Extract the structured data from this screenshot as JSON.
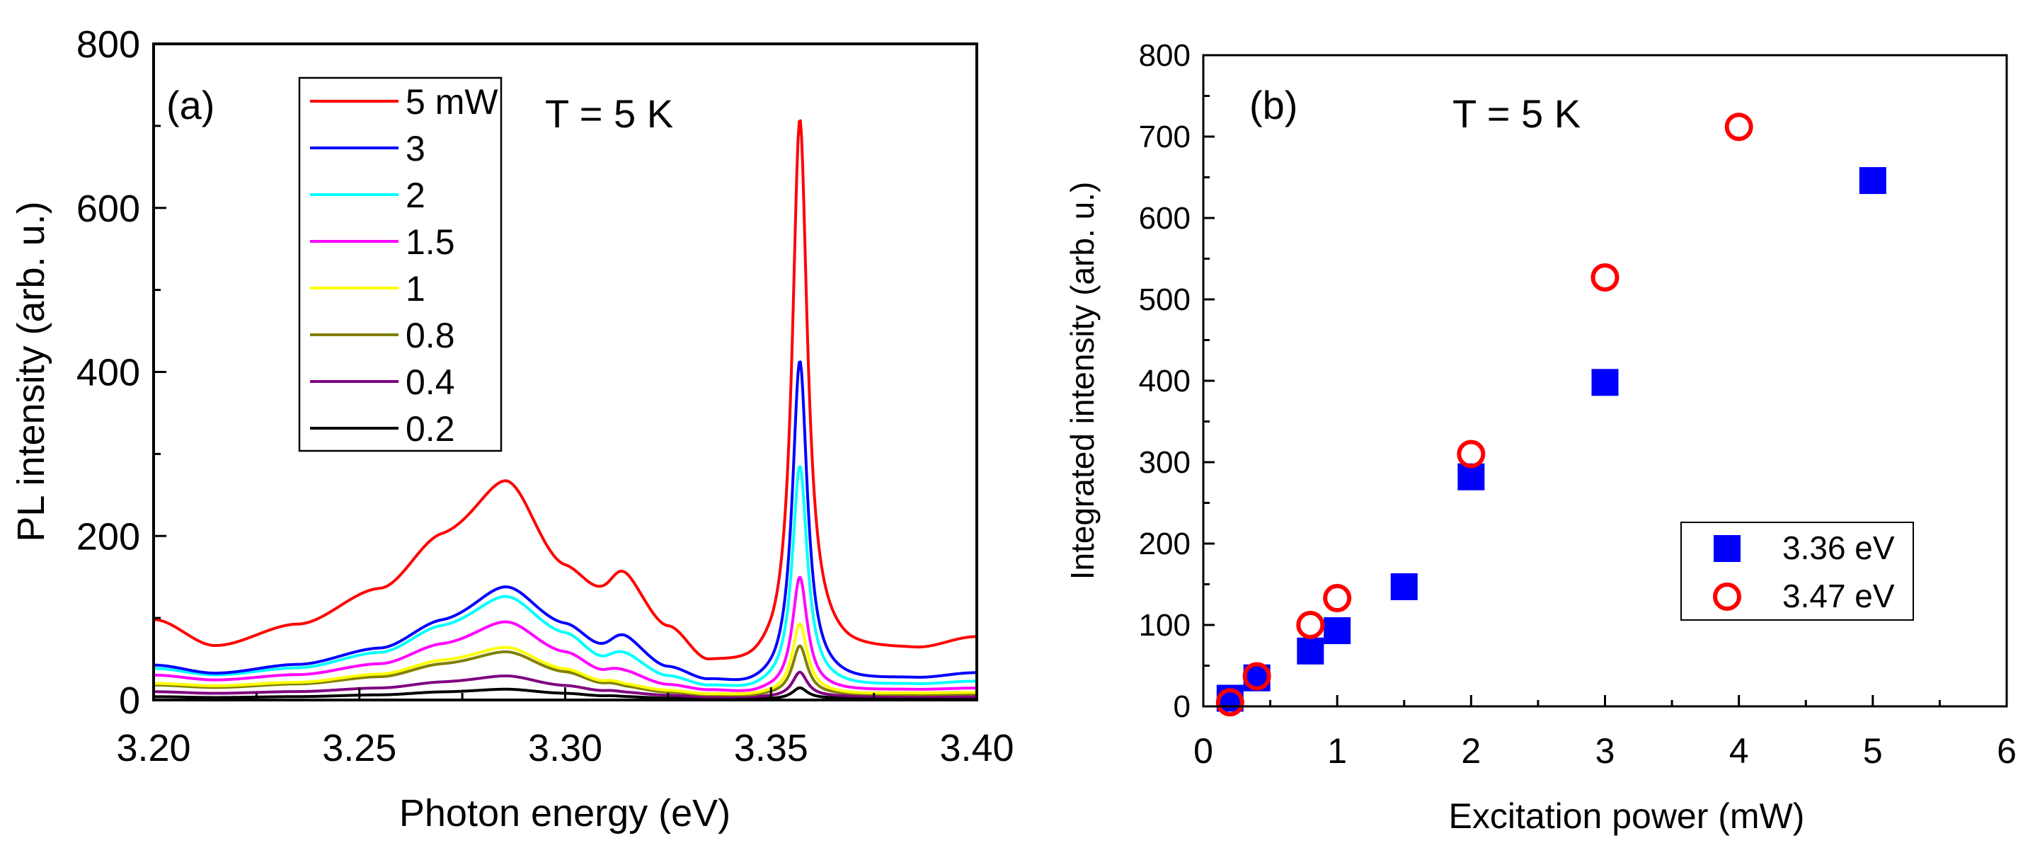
{
  "chart_data": [
    {
      "type": "line",
      "panel_label": "(a)",
      "annotation": "T = 5 K",
      "xlabel": "Photon energy (eV)",
      "ylabel": "PL intensity (arb. u.)",
      "xlim": [
        3.2,
        3.4
      ],
      "ylim": [
        0,
        800
      ],
      "xticks": [
        3.2,
        3.25,
        3.3,
        3.35,
        3.4
      ],
      "xtick_labels": [
        "3.20",
        "3.25",
        "3.30",
        "3.35",
        "3.40"
      ],
      "yticks": [
        0,
        200,
        400,
        600,
        800
      ],
      "ytick_labels": [
        "0",
        "200",
        "400",
        "600",
        "800"
      ],
      "legend_position": "top-left",
      "series": [
        {
          "name": "5 mW",
          "color": "#ff0000",
          "base": [
            97,
            65,
            90,
            130,
            185,
            205,
            140,
            110,
            120,
            80,
            40,
            36,
            40
          ],
          "band": 175,
          "shoulder": 88,
          "peak": 645,
          "tail": [
            68,
            58,
            60,
            75
          ]
        },
        {
          "name": "3",
          "color": "#0000ff",
          "base": [
            42,
            32,
            42,
            60,
            88,
            104,
            80,
            52,
            58,
            35,
            20,
            14,
            15
          ],
          "band": 95,
          "shoulder": 52,
          "peak": 390,
          "tail": [
            25,
            22,
            25,
            32
          ]
        },
        {
          "name": "2",
          "color": "#00ffff",
          "base": [
            38,
            30,
            38,
            55,
            82,
            95,
            70,
            40,
            42,
            25,
            14,
            10,
            12
          ],
          "band": 88,
          "shoulder": 38,
          "peak": 268,
          "tail": [
            18,
            16,
            18,
            22
          ]
        },
        {
          "name": "1.5",
          "color": "#ff00ff",
          "base": [
            30,
            24,
            30,
            42,
            62,
            72,
            50,
            28,
            26,
            16,
            10,
            7,
            9
          ],
          "band": 66,
          "shoulder": 24,
          "peak": 138,
          "tail": [
            12,
            11,
            12,
            14
          ]
        },
        {
          "name": "1",
          "color": "#ffff00",
          "base": [
            20,
            17,
            21,
            30,
            44,
            48,
            32,
            18,
            14,
            10,
            6,
            5,
            6
          ],
          "band": 46,
          "shoulder": 13,
          "peak": 85,
          "tail": [
            8,
            7,
            8,
            9
          ]
        },
        {
          "name": "0.8",
          "color": "#808000",
          "base": [
            18,
            15,
            19,
            27,
            40,
            44,
            29,
            16,
            12,
            8,
            5,
            4,
            5
          ],
          "band": 42,
          "shoulder": 11,
          "peak": 60,
          "tail": [
            6,
            6,
            6,
            7
          ]
        },
        {
          "name": "0.4",
          "color": "#800080",
          "base": [
            10,
            8,
            10,
            14,
            20,
            22,
            15,
            9,
            7,
            5,
            3,
            3,
            3
          ],
          "band": 21,
          "shoulder": 6,
          "peak": 30,
          "tail": [
            4,
            4,
            4,
            4
          ]
        },
        {
          "name": "0.2",
          "color": "#000000",
          "base": [
            4,
            3,
            4,
            6,
            9,
            10,
            7,
            4,
            3,
            2,
            1,
            1,
            1
          ],
          "band": 9,
          "shoulder": 3,
          "peak": 13,
          "tail": [
            2,
            2,
            2,
            2
          ]
        }
      ]
    },
    {
      "type": "scatter",
      "panel_label": "(b)",
      "annotation": "T = 5 K",
      "xlabel": "Excitation power (mW)",
      "ylabel": "Integrated intensity (arb. u.)",
      "xlim": [
        0,
        6
      ],
      "ylim": [
        0,
        800
      ],
      "xticks": [
        0,
        1,
        2,
        3,
        4,
        5,
        6
      ],
      "xtick_labels": [
        "0",
        "1",
        "2",
        "3",
        "4",
        "5",
        "6"
      ],
      "yticks": [
        0,
        100,
        200,
        300,
        400,
        500,
        600,
        700,
        800
      ],
      "ytick_labels": [
        "0",
        "100",
        "200",
        "300",
        "400",
        "500",
        "600",
        "700",
        "800"
      ],
      "legend_position": "bottom-right",
      "series": [
        {
          "name": "3.36 eV",
          "marker": "square",
          "color": "#0000ff",
          "x": [
            0.2,
            0.4,
            0.8,
            1.0,
            1.5,
            2.0,
            3.0,
            5.0
          ],
          "y": [
            10,
            35,
            68,
            93,
            147,
            282,
            398,
            646
          ]
        },
        {
          "name": "3.47 eV",
          "marker": "circle-open",
          "color": "#ff0000",
          "x": [
            0.2,
            0.4,
            0.8,
            1.0,
            2.0,
            3.0,
            4.0
          ],
          "y": [
            5,
            37,
            100,
            133,
            310,
            527,
            712
          ]
        }
      ]
    }
  ]
}
